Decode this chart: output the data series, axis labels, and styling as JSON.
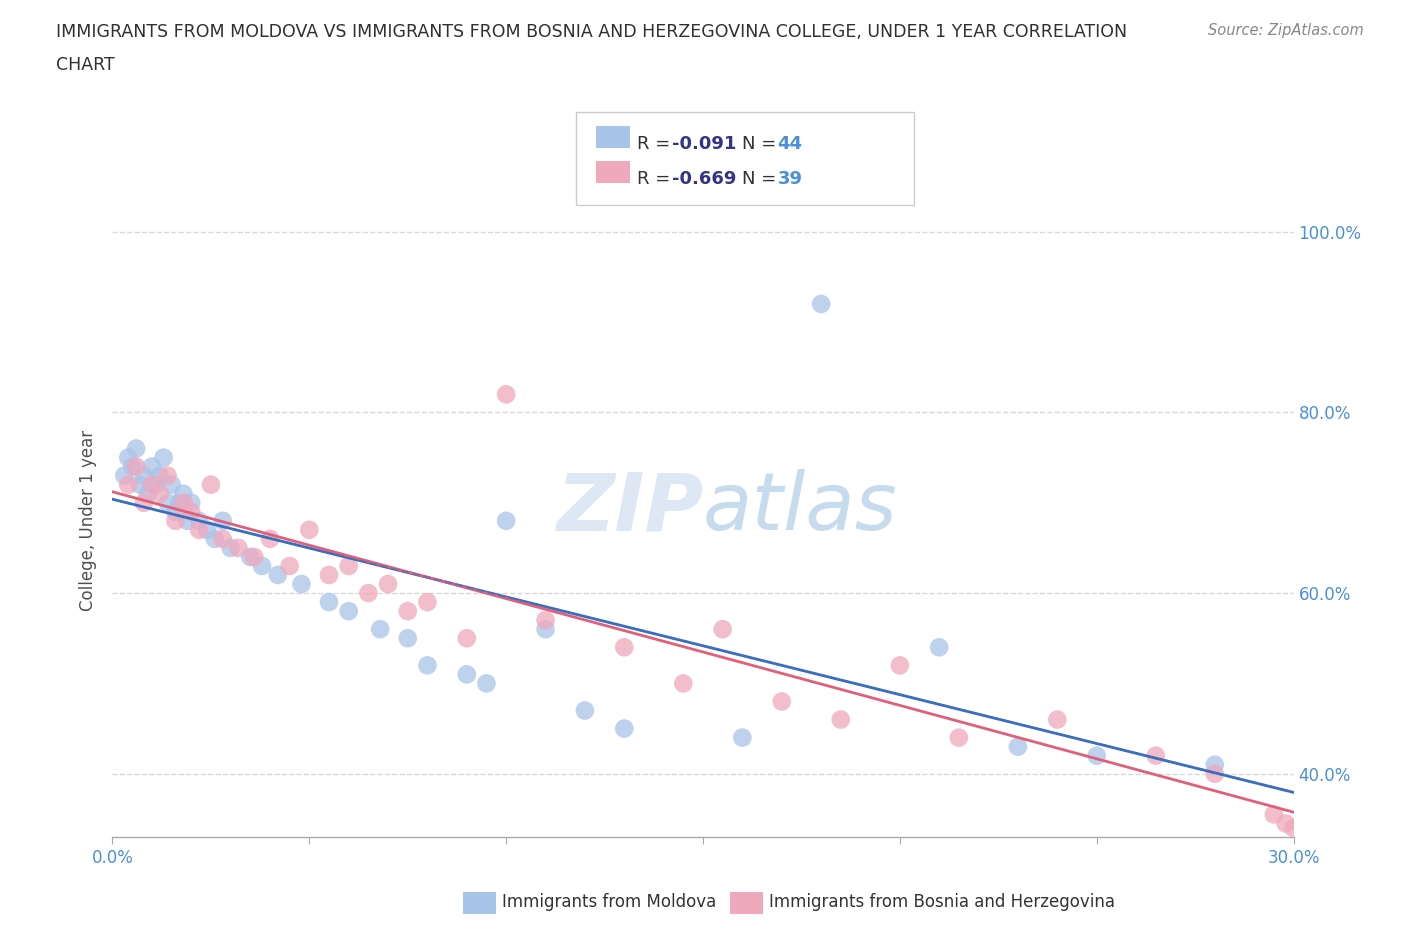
{
  "title_line1": "IMMIGRANTS FROM MOLDOVA VS IMMIGRANTS FROM BOSNIA AND HERZEGOVINA COLLEGE, UNDER 1 YEAR CORRELATION",
  "title_line2": "CHART",
  "source": "Source: ZipAtlas.com",
  "ylabel": "College, Under 1 year",
  "xlim": [
    0.0,
    0.3
  ],
  "ylim": [
    0.33,
    1.03
  ],
  "xticks": [
    0.0,
    0.05,
    0.1,
    0.15,
    0.2,
    0.25,
    0.3
  ],
  "ytick_positions": [
    0.4,
    0.6,
    0.8,
    1.0
  ],
  "yticklabels": [
    "40.0%",
    "60.0%",
    "80.0%",
    "100.0%"
  ],
  "moldova_color": "#a8c4e8",
  "bosnia_color": "#f0a8bc",
  "moldova_line_color": "#3a6fc0",
  "bosnia_line_color": "#e0607a",
  "moldova_R": -0.091,
  "moldova_N": 44,
  "bosnia_R": -0.669,
  "bosnia_N": 39,
  "legend_label1": "Immigrants from Moldova",
  "legend_label2": "Immigrants from Bosnia and Herzegovina",
  "watermark": "ZIPAtlas",
  "moldova_x": [
    0.003,
    0.004,
    0.005,
    0.006,
    0.007,
    0.008,
    0.009,
    0.01,
    0.011,
    0.012,
    0.013,
    0.014,
    0.015,
    0.016,
    0.017,
    0.018,
    0.019,
    0.02,
    0.022,
    0.024,
    0.026,
    0.028,
    0.03,
    0.035,
    0.038,
    0.042,
    0.048,
    0.055,
    0.06,
    0.068,
    0.075,
    0.08,
    0.09,
    0.095,
    0.1,
    0.11,
    0.12,
    0.13,
    0.16,
    0.18,
    0.21,
    0.23,
    0.25,
    0.28
  ],
  "moldova_y": [
    0.73,
    0.75,
    0.74,
    0.76,
    0.72,
    0.73,
    0.71,
    0.74,
    0.72,
    0.73,
    0.75,
    0.7,
    0.72,
    0.69,
    0.7,
    0.71,
    0.68,
    0.7,
    0.68,
    0.67,
    0.66,
    0.68,
    0.65,
    0.64,
    0.63,
    0.62,
    0.61,
    0.59,
    0.58,
    0.56,
    0.55,
    0.52,
    0.51,
    0.5,
    0.68,
    0.56,
    0.47,
    0.45,
    0.44,
    0.92,
    0.54,
    0.43,
    0.42,
    0.41
  ],
  "bosnia_x": [
    0.004,
    0.006,
    0.008,
    0.01,
    0.012,
    0.014,
    0.016,
    0.018,
    0.02,
    0.022,
    0.025,
    0.028,
    0.032,
    0.036,
    0.04,
    0.045,
    0.05,
    0.055,
    0.06,
    0.065,
    0.07,
    0.075,
    0.08,
    0.09,
    0.1,
    0.11,
    0.13,
    0.145,
    0.155,
    0.17,
    0.185,
    0.2,
    0.215,
    0.24,
    0.265,
    0.28,
    0.295,
    0.298,
    0.3
  ],
  "bosnia_y": [
    0.72,
    0.74,
    0.7,
    0.72,
    0.71,
    0.73,
    0.68,
    0.7,
    0.69,
    0.67,
    0.72,
    0.66,
    0.65,
    0.64,
    0.66,
    0.63,
    0.67,
    0.62,
    0.63,
    0.6,
    0.61,
    0.58,
    0.59,
    0.55,
    0.82,
    0.57,
    0.54,
    0.5,
    0.56,
    0.48,
    0.46,
    0.52,
    0.44,
    0.46,
    0.42,
    0.4,
    0.355,
    0.345,
    0.34
  ],
  "background_color": "#ffffff",
  "grid_color": "#d8d8d8",
  "title_color": "#303030",
  "axis_label_color": "#505050",
  "tick_label_color": "#4a90d9",
  "legend_text_color": "#333388",
  "legend_n_color": "#4a90d9"
}
